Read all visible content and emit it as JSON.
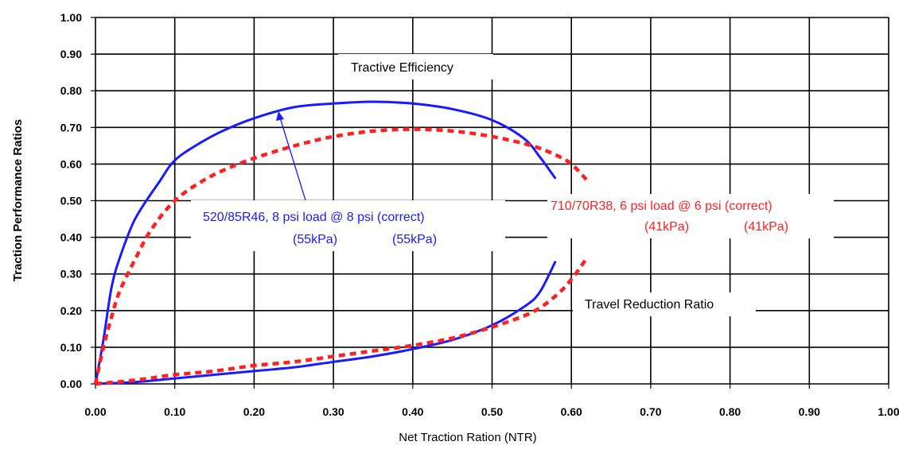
{
  "chart_data": {
    "type": "line",
    "xlabel": "Net Traction Ration (NTR)",
    "ylabel": "Traction Performance Ratios",
    "xlim": [
      0,
      1
    ],
    "ylim": [
      0,
      1
    ],
    "x_ticks": [
      "0.00",
      "0.10",
      "0.20",
      "0.30",
      "0.40",
      "0.50",
      "0.60",
      "0.70",
      "0.80",
      "0.90",
      "1.00"
    ],
    "y_ticks": [
      "0.00",
      "0.10",
      "0.20",
      "0.30",
      "0.40",
      "0.50",
      "0.60",
      "0.70",
      "0.80",
      "0.90",
      "1.00"
    ],
    "grid": true,
    "colors": {
      "blue": "#1a1aff",
      "red": "#ff2020"
    },
    "annotations": {
      "te": "Tractive Efficiency",
      "trr": "Travel Reduction Ratio",
      "blue_line1": "520/85R46, 8 psi load @ 8 psi (correct)",
      "blue_line2a": "(55kPa)",
      "blue_line2b": "(55kPa)",
      "red_line1": "710/70R38, 6 psi load @ 6 psi (correct)",
      "red_line2a": "(41kPa)",
      "red_line2b": "(41kPa)"
    },
    "series": [
      {
        "color": "#1a1aff",
        "dash": false,
        "role": "tractive-efficiency",
        "x": [
          0.0,
          0.01,
          0.02,
          0.03,
          0.05,
          0.08,
          0.1,
          0.13,
          0.16,
          0.2,
          0.25,
          0.3,
          0.35,
          0.4,
          0.45,
          0.5,
          0.54,
          0.56,
          0.58
        ],
        "y": [
          0.0,
          0.12,
          0.26,
          0.34,
          0.45,
          0.55,
          0.61,
          0.655,
          0.69,
          0.725,
          0.755,
          0.765,
          0.77,
          0.765,
          0.75,
          0.72,
          0.67,
          0.62,
          0.56
        ]
      },
      {
        "color": "#ff2020",
        "dash": true,
        "role": "tractive-efficiency",
        "x": [
          0.0,
          0.01,
          0.02,
          0.03,
          0.05,
          0.07,
          0.1,
          0.14,
          0.18,
          0.22,
          0.26,
          0.3,
          0.35,
          0.4,
          0.45,
          0.5,
          0.55,
          0.58,
          0.6,
          0.62
        ],
        "y": [
          0.0,
          0.1,
          0.18,
          0.25,
          0.34,
          0.42,
          0.5,
          0.56,
          0.6,
          0.63,
          0.655,
          0.675,
          0.69,
          0.695,
          0.69,
          0.675,
          0.65,
          0.625,
          0.6,
          0.555
        ]
      },
      {
        "color": "#1a1aff",
        "dash": false,
        "role": "travel-reduction-ratio",
        "x": [
          0.0,
          0.05,
          0.1,
          0.15,
          0.2,
          0.25,
          0.3,
          0.35,
          0.4,
          0.45,
          0.5,
          0.54,
          0.56,
          0.58
        ],
        "y": [
          0.0,
          0.005,
          0.015,
          0.025,
          0.035,
          0.045,
          0.06,
          0.075,
          0.095,
          0.12,
          0.16,
          0.21,
          0.25,
          0.335
        ]
      },
      {
        "color": "#ff2020",
        "dash": true,
        "role": "travel-reduction-ratio",
        "x": [
          0.0,
          0.05,
          0.1,
          0.15,
          0.2,
          0.25,
          0.3,
          0.35,
          0.4,
          0.45,
          0.5,
          0.55,
          0.58,
          0.6,
          0.62
        ],
        "y": [
          0.0,
          0.01,
          0.025,
          0.035,
          0.05,
          0.06,
          0.075,
          0.09,
          0.105,
          0.125,
          0.155,
          0.195,
          0.24,
          0.285,
          0.345
        ]
      }
    ]
  }
}
